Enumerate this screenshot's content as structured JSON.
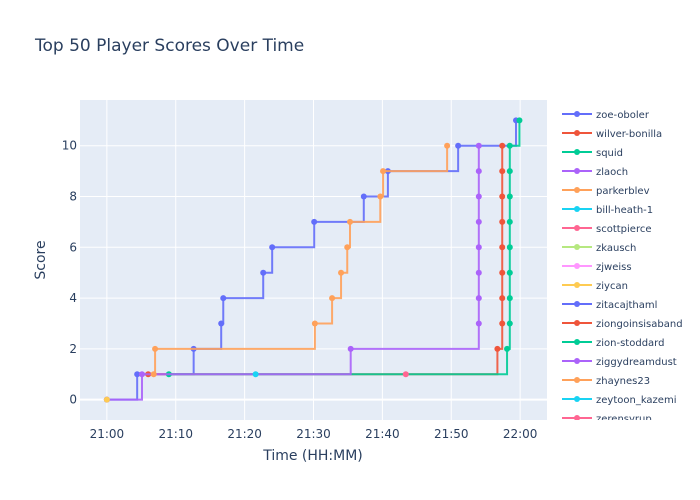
{
  "chart_data": {
    "type": "line",
    "line_shape": "step-hv",
    "title": "Top 50 Player Scores Over Time",
    "xlabel": "Time (HH:MM)",
    "ylabel": "Score",
    "x_units": "minutes after 21:00",
    "xlim": [
      -3.9,
      63.9
    ],
    "ylim": [
      -0.8,
      11.8
    ],
    "xticks": [
      {
        "v": 0,
        "label": "21:00"
      },
      {
        "v": 10,
        "label": "21:10"
      },
      {
        "v": 20,
        "label": "21:20"
      },
      {
        "v": 30,
        "label": "21:30"
      },
      {
        "v": 40,
        "label": "21:40"
      },
      {
        "v": 50,
        "label": "21:50"
      },
      {
        "v": 60,
        "label": "22:00"
      }
    ],
    "yticks": [
      0,
      2,
      4,
      6,
      8,
      10
    ],
    "grid": true,
    "legend_position": "right",
    "series": [
      {
        "name": "zoe-oboler",
        "color": "#636efa",
        "points": [
          [
            0,
            0
          ],
          [
            4.4,
            1
          ],
          [
            12.6,
            2
          ],
          [
            16.6,
            3
          ],
          [
            16.9,
            4
          ],
          [
            22.7,
            5
          ],
          [
            24,
            6
          ],
          [
            30.1,
            7
          ],
          [
            37.3,
            8
          ],
          [
            40.8,
            9
          ],
          [
            51,
            10
          ],
          [
            59.4,
            11
          ]
        ]
      },
      {
        "name": "wilver-bonilla",
        "color": "#EF553B",
        "points": [
          [
            6,
            1
          ],
          [
            56.7,
            2
          ],
          [
            57.4,
            3
          ],
          [
            57.4,
            4
          ],
          [
            57.4,
            5
          ],
          [
            57.4,
            6
          ],
          [
            57.4,
            7
          ],
          [
            57.4,
            8
          ],
          [
            57.4,
            9
          ],
          [
            57.4,
            10
          ]
        ]
      },
      {
        "name": "squid",
        "color": "#00cc96",
        "points": [
          [
            9,
            1
          ],
          [
            58.1,
            2
          ],
          [
            58.5,
            3
          ],
          [
            58.5,
            4
          ],
          [
            58.5,
            5
          ],
          [
            58.5,
            6
          ],
          [
            58.5,
            7
          ],
          [
            58.5,
            8
          ],
          [
            58.5,
            9
          ],
          [
            58.5,
            10
          ],
          [
            59.9,
            11
          ]
        ]
      },
      {
        "name": "zlaoch",
        "color": "#ab63fa",
        "points": [
          [
            0,
            0
          ],
          [
            5.1,
            1
          ],
          [
            35.4,
            2
          ],
          [
            54,
            3
          ],
          [
            54,
            4
          ],
          [
            54,
            5
          ],
          [
            54,
            6
          ],
          [
            54,
            7
          ],
          [
            54,
            8
          ],
          [
            54,
            9
          ],
          [
            54,
            10
          ]
        ]
      },
      {
        "name": "parkerblev",
        "color": "#FFA15A",
        "points": [
          [
            6.8,
            1
          ],
          [
            7,
            2
          ],
          [
            30.2,
            3
          ],
          [
            32.7,
            4
          ],
          [
            34,
            5
          ],
          [
            34.9,
            6
          ],
          [
            35.3,
            7
          ],
          [
            39.7,
            8
          ],
          [
            40.1,
            9
          ],
          [
            49.4,
            10
          ]
        ]
      },
      {
        "name": "bill-heath-1",
        "color": "#19d3f3",
        "points": [
          [
            21.6,
            1
          ]
        ]
      },
      {
        "name": "scottpierce",
        "color": "#FF6692",
        "points": [
          [
            43.4,
            1
          ]
        ]
      },
      {
        "name": "zkausch",
        "color": "#B6E880",
        "points": []
      },
      {
        "name": "zjweiss",
        "color": "#FF97FF",
        "points": []
      },
      {
        "name": "ziycan",
        "color": "#FECB52",
        "points": [
          [
            0,
            0
          ]
        ]
      },
      {
        "name": "zitacajthaml",
        "color": "#636efa",
        "points": []
      },
      {
        "name": "ziongoinsisaband",
        "color": "#EF553B",
        "points": []
      },
      {
        "name": "zion-stoddard",
        "color": "#00cc96",
        "points": []
      },
      {
        "name": "ziggydreamdust",
        "color": "#ab63fa",
        "points": []
      },
      {
        "name": "zhaynes23",
        "color": "#FFA15A",
        "points": []
      },
      {
        "name": "zeytoon_kazemi",
        "color": "#19d3f3",
        "points": []
      },
      {
        "name": "zerensyrup",
        "color": "#FF6692",
        "points": []
      }
    ]
  }
}
